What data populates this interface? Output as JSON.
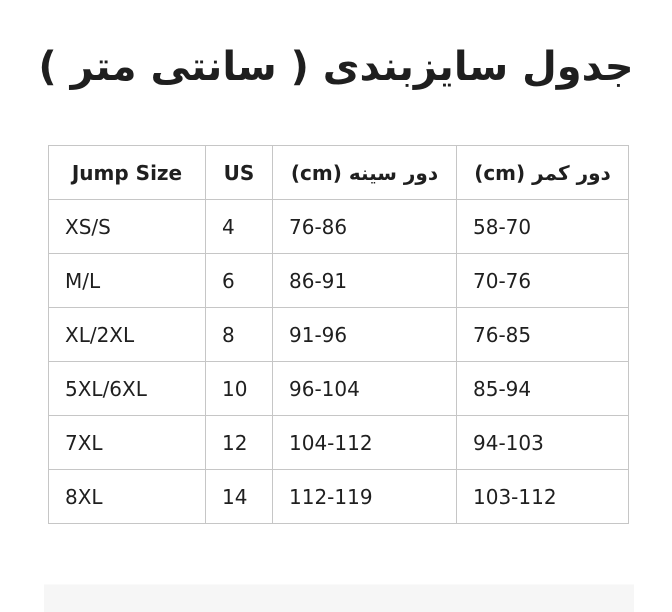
{
  "page": {
    "title": "جدول سایزبندی ( سانتی متر )",
    "background": "#ffffff"
  },
  "colors": {
    "text": "#1f1f1f",
    "table_border": "#c6c6c6",
    "bottom_panel_bg": "#f6f6f6"
  },
  "table": {
    "headers": [
      "Jump Size",
      "US",
      "دور سینه (cm)",
      "دور کمر (cm)"
    ],
    "rows": [
      [
        "XS/S",
        "4",
        "76-86",
        "58-70"
      ],
      [
        "M/L",
        "6",
        "86-91",
        "70-76"
      ],
      [
        "XL/2XL",
        "8",
        "91-96",
        "76-85"
      ],
      [
        "5XL/6XL",
        "10",
        "96-104",
        "85-94"
      ],
      [
        "7XL",
        "12",
        "104-112",
        "94-103"
      ],
      [
        "8XL",
        "14",
        "112-119",
        "103-112"
      ]
    ]
  }
}
